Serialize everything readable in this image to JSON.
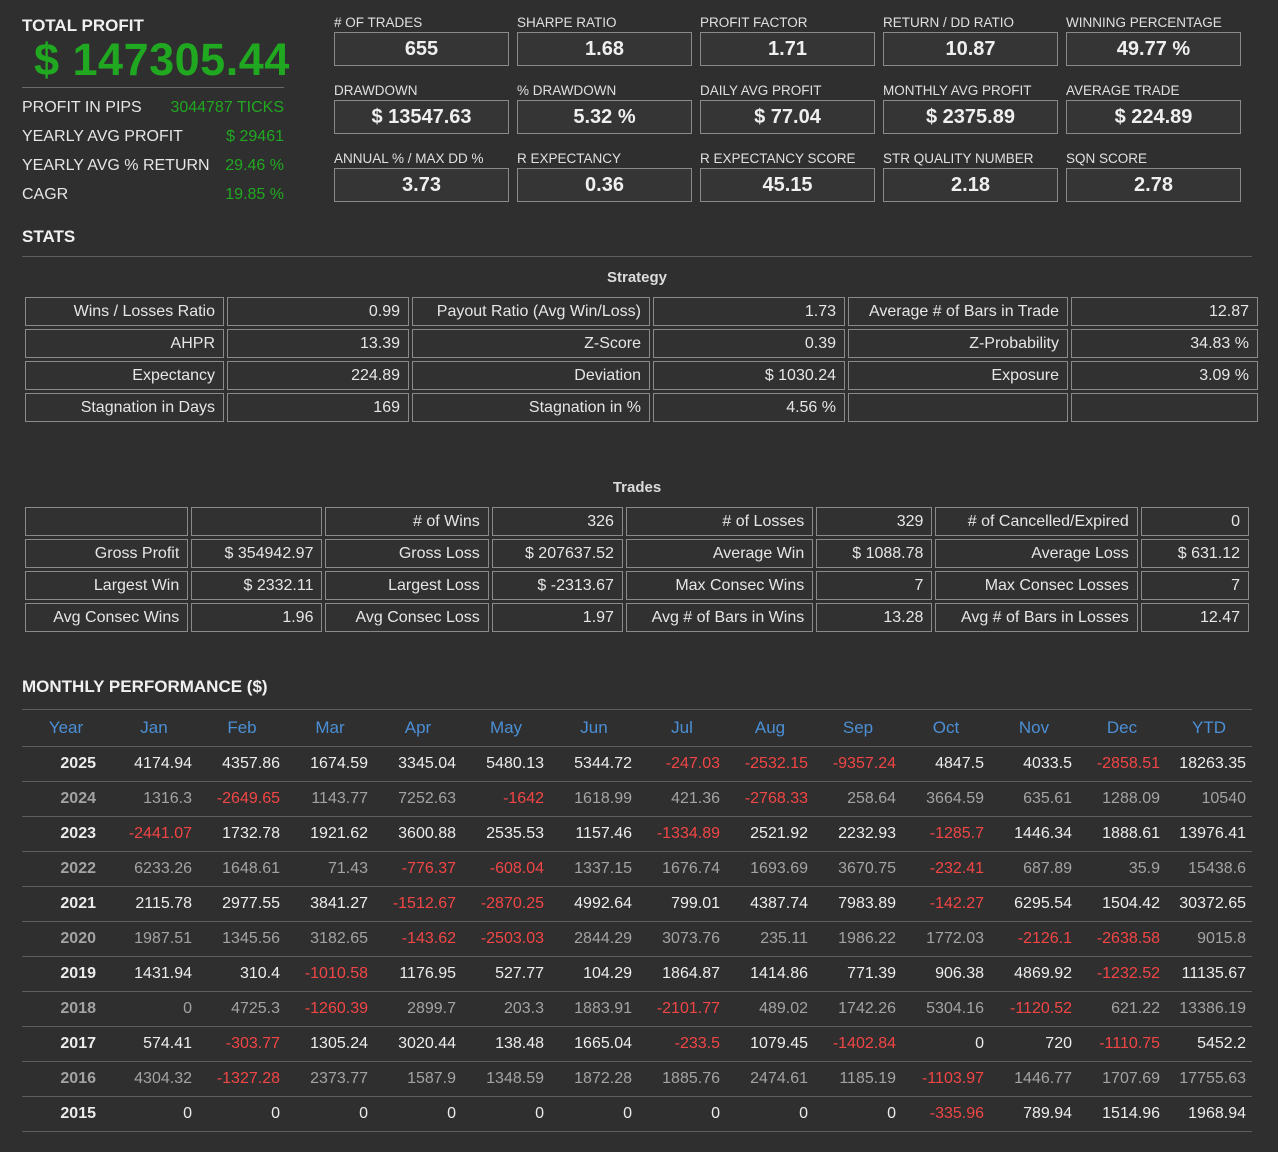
{
  "summary": {
    "total_profit_label": "TOTAL PROFIT",
    "total_profit_value": "$ 147305.44",
    "rows": [
      {
        "label": "PROFIT IN PIPS",
        "value": "3044787 TICKS"
      },
      {
        "label": "YEARLY AVG PROFIT",
        "value": "$ 29461"
      },
      {
        "label": "YEARLY AVG % RETURN",
        "value": "29.46 %"
      },
      {
        "label": "CAGR",
        "value": "19.85 %"
      }
    ]
  },
  "metrics": [
    {
      "label": "# OF TRADES",
      "value": "655"
    },
    {
      "label": "SHARPE RATIO",
      "value": "1.68"
    },
    {
      "label": "PROFIT FACTOR",
      "value": "1.71"
    },
    {
      "label": "RETURN / DD RATIO",
      "value": "10.87"
    },
    {
      "label": "WINNING PERCENTAGE",
      "value": "49.77 %"
    },
    {
      "label": "DRAWDOWN",
      "value": "$ 13547.63"
    },
    {
      "label": "% DRAWDOWN",
      "value": "5.32 %"
    },
    {
      "label": "DAILY AVG PROFIT",
      "value": "$ 77.04"
    },
    {
      "label": "MONTHLY AVG PROFIT",
      "value": "$ 2375.89"
    },
    {
      "label": "AVERAGE TRADE",
      "value": "$ 224.89"
    },
    {
      "label": "ANNUAL % / MAX DD %",
      "value": "3.73"
    },
    {
      "label": "R EXPECTANCY",
      "value": "0.36"
    },
    {
      "label": "R EXPECTANCY SCORE",
      "value": "45.15"
    },
    {
      "label": "STR QUALITY NUMBER",
      "value": "2.18"
    },
    {
      "label": "SQN SCORE",
      "value": "2.78"
    }
  ],
  "stats": {
    "title": "STATS",
    "strategy_title": "Strategy",
    "strategy_rows": [
      [
        "Wins / Losses Ratio",
        "0.99",
        "Payout Ratio (Avg Win/Loss)",
        "1.73",
        "Average # of Bars in Trade",
        "12.87"
      ],
      [
        "AHPR",
        "13.39",
        "Z-Score",
        "0.39",
        "Z-Probability",
        "34.83 %"
      ],
      [
        "Expectancy",
        "224.89",
        "Deviation",
        "$ 1030.24",
        "Exposure",
        "3.09 %"
      ],
      [
        "Stagnation in Days",
        "169",
        "Stagnation in %",
        "4.56 %",
        "",
        ""
      ]
    ],
    "trades_title": "Trades",
    "trades_rows": [
      [
        "",
        "",
        "# of Wins",
        "326",
        "# of Losses",
        "329",
        "# of Cancelled/Expired",
        "0"
      ],
      [
        "Gross Profit",
        "$ 354942.97",
        "Gross Loss",
        "$ 207637.52",
        "Average Win",
        "$ 1088.78",
        "Average Loss",
        "$ 631.12"
      ],
      [
        "Largest Win",
        "$ 2332.11",
        "Largest Loss",
        "$ -2313.67",
        "Max Consec Wins",
        "7",
        "Max Consec Losses",
        "7"
      ],
      [
        "Avg Consec Wins",
        "1.96",
        "Avg Consec Loss",
        "1.97",
        "Avg # of Bars in Wins",
        "13.28",
        "Avg # of Bars in Losses",
        "12.47"
      ]
    ]
  },
  "monthly": {
    "title": "MONTHLY PERFORMANCE ($)",
    "headers": [
      "Year",
      "Jan",
      "Feb",
      "Mar",
      "Apr",
      "May",
      "Jun",
      "Jul",
      "Aug",
      "Sep",
      "Oct",
      "Nov",
      "Dec",
      "YTD"
    ],
    "rows": [
      [
        "2025",
        "4174.94",
        "4357.86",
        "1674.59",
        "3345.04",
        "5480.13",
        "5344.72",
        "-247.03",
        "-2532.15",
        "-9357.24",
        "4847.5",
        "4033.5",
        "-2858.51",
        "18263.35"
      ],
      [
        "2024",
        "1316.3",
        "-2649.65",
        "1143.77",
        "7252.63",
        "-1642",
        "1618.99",
        "421.36",
        "-2768.33",
        "258.64",
        "3664.59",
        "635.61",
        "1288.09",
        "10540"
      ],
      [
        "2023",
        "-2441.07",
        "1732.78",
        "1921.62",
        "3600.88",
        "2535.53",
        "1157.46",
        "-1334.89",
        "2521.92",
        "2232.93",
        "-1285.7",
        "1446.34",
        "1888.61",
        "13976.41"
      ],
      [
        "2022",
        "6233.26",
        "1648.61",
        "71.43",
        "-776.37",
        "-608.04",
        "1337.15",
        "1676.74",
        "1693.69",
        "3670.75",
        "-232.41",
        "687.89",
        "35.9",
        "15438.6"
      ],
      [
        "2021",
        "2115.78",
        "2977.55",
        "3841.27",
        "-1512.67",
        "-2870.25",
        "4992.64",
        "799.01",
        "4387.74",
        "7983.89",
        "-142.27",
        "6295.54",
        "1504.42",
        "30372.65"
      ],
      [
        "2020",
        "1987.51",
        "1345.56",
        "3182.65",
        "-143.62",
        "-2503.03",
        "2844.29",
        "3073.76",
        "235.11",
        "1986.22",
        "1772.03",
        "-2126.1",
        "-2638.58",
        "9015.8"
      ],
      [
        "2019",
        "1431.94",
        "310.4",
        "-1010.58",
        "1176.95",
        "527.77",
        "104.29",
        "1864.87",
        "1414.86",
        "771.39",
        "906.38",
        "4869.92",
        "-1232.52",
        "11135.67"
      ],
      [
        "2018",
        "0",
        "4725.3",
        "-1260.39",
        "2899.7",
        "203.3",
        "1883.91",
        "-2101.77",
        "489.02",
        "1742.26",
        "5304.16",
        "-1120.52",
        "621.22",
        "13386.19"
      ],
      [
        "2017",
        "574.41",
        "-303.77",
        "1305.24",
        "3020.44",
        "138.48",
        "1665.04",
        "-233.5",
        "1079.45",
        "-1402.84",
        "0",
        "720",
        "-1110.75",
        "5452.2"
      ],
      [
        "2016",
        "4304.32",
        "-1327.28",
        "2373.77",
        "1587.9",
        "1348.59",
        "1872.28",
        "1885.76",
        "2474.61",
        "1185.19",
        "-1103.97",
        "1446.77",
        "1707.69",
        "17755.63"
      ],
      [
        "2015",
        "0",
        "0",
        "0",
        "0",
        "0",
        "0",
        "0",
        "0",
        "0",
        "-335.96",
        "789.94",
        "1514.96",
        "1968.94"
      ]
    ]
  },
  "colors": {
    "background": "#2f2f2f",
    "profit_green": "#21a821",
    "negative_red": "#f24545",
    "header_blue": "#4b8fd6"
  }
}
